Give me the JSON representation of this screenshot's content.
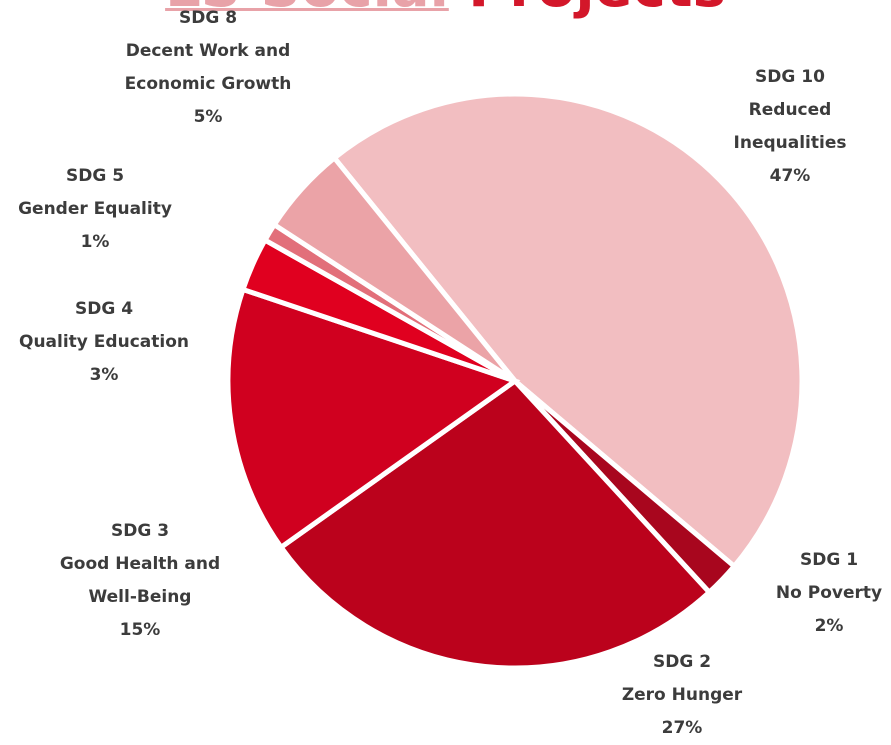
{
  "title": {
    "part1": "LS Social",
    "part2": "Projects"
  },
  "chart_data": {
    "type": "pie",
    "title": "LS Social Projects",
    "slices": [
      {
        "key": "sdg10",
        "goal": "SDG 10",
        "name": "Reduced Inequalities",
        "value": 47,
        "label": "47%",
        "color": "#f2bec1"
      },
      {
        "key": "sdg1",
        "goal": "SDG 1",
        "name": "No Poverty",
        "value": 2,
        "label": "2%",
        "color": "#a8061e"
      },
      {
        "key": "sdg2",
        "goal": "SDG 2",
        "name": "Zero Hunger",
        "value": 27,
        "label": "27%",
        "color": "#bb021c"
      },
      {
        "key": "sdg3",
        "goal": "SDG 3",
        "name": "Good Health and Well-Being",
        "value": 15,
        "label": "15%",
        "color": "#d0001f"
      },
      {
        "key": "sdg4",
        "goal": "SDG 4",
        "name": "Quality Education",
        "value": 3,
        "label": "3%",
        "color": "#e0001f"
      },
      {
        "key": "sdg5",
        "goal": "SDG 5",
        "name": "Gender Equality",
        "value": 1,
        "label": "1%",
        "color": "#e26f7a"
      },
      {
        "key": "sdg8",
        "goal": "SDG 8",
        "name": "Decent Work and Economic Growth",
        "value": 5,
        "label": "5%",
        "color": "#eba3a7"
      }
    ],
    "label_lines": {
      "sdg10": [
        "SDG 10",
        "Reduced",
        "Inequalities",
        "47%"
      ],
      "sdg1": [
        "SDG 1",
        "No Poverty",
        "2%"
      ],
      "sdg2": [
        "SDG 2",
        "Zero Hunger",
        "27%"
      ],
      "sdg3": [
        "SDG 3",
        "Good Health and",
        "Well-Being",
        "15%"
      ],
      "sdg4": [
        "SDG 4",
        "Quality Education",
        "3%"
      ],
      "sdg5": [
        "SDG 5",
        "Gender Equality",
        "1%"
      ],
      "sdg8": [
        "SDG 8",
        "Decent Work and",
        "Economic Growth",
        "5%"
      ]
    },
    "legend": "none"
  }
}
